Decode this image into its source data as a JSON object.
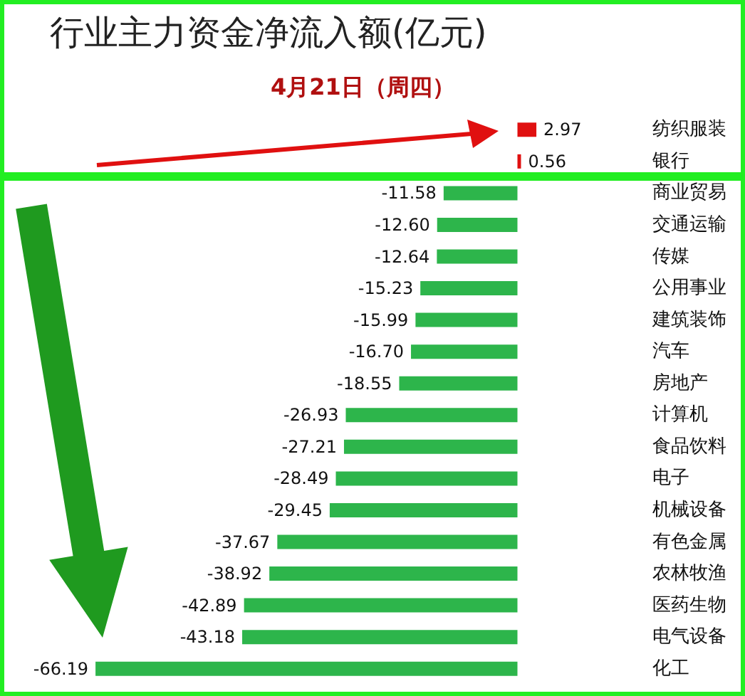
{
  "chart_data": {
    "type": "bar",
    "orientation": "horizontal",
    "title": "行业主力资金净流入额(亿元)",
    "subtitle": "4月21日（周四）",
    "categories": [
      "纺织服装",
      "银行",
      "商业贸易",
      "交通运输",
      "传媒",
      "公用事业",
      "建筑装饰",
      "汽车",
      "房地产",
      "计算机",
      "食品饮料",
      "电子",
      "机械设备",
      "有色金属",
      "农林牧渔",
      "医药生物",
      "电气设备",
      "化工"
    ],
    "values": [
      2.97,
      0.56,
      -11.58,
      -12.6,
      -12.64,
      -15.23,
      -15.99,
      -16.7,
      -18.55,
      -26.93,
      -27.21,
      -28.49,
      -29.45,
      -37.67,
      -38.92,
      -42.89,
      -43.18,
      -66.19
    ],
    "colors": [
      "#e01010",
      "#e01010",
      "#2db54b",
      "#2db54b",
      "#2db54b",
      "#2db54b",
      "#2db54b",
      "#2db54b",
      "#2db54b",
      "#2db54b",
      "#2db54b",
      "#2db54b",
      "#2db54b",
      "#2db54b",
      "#2db54b",
      "#2db54b",
      "#2db54b",
      "#2db54b"
    ],
    "value_labels": [
      "2.97",
      "0.56",
      "-11.58",
      "-12.60",
      "-12.64",
      "-15.23",
      "-15.99",
      "-16.70",
      "-18.55",
      "-26.93",
      "-27.21",
      "-28.49",
      "-29.45",
      "-37.67",
      "-38.92",
      "-42.89",
      "-43.18",
      "-66.19"
    ]
  }
}
